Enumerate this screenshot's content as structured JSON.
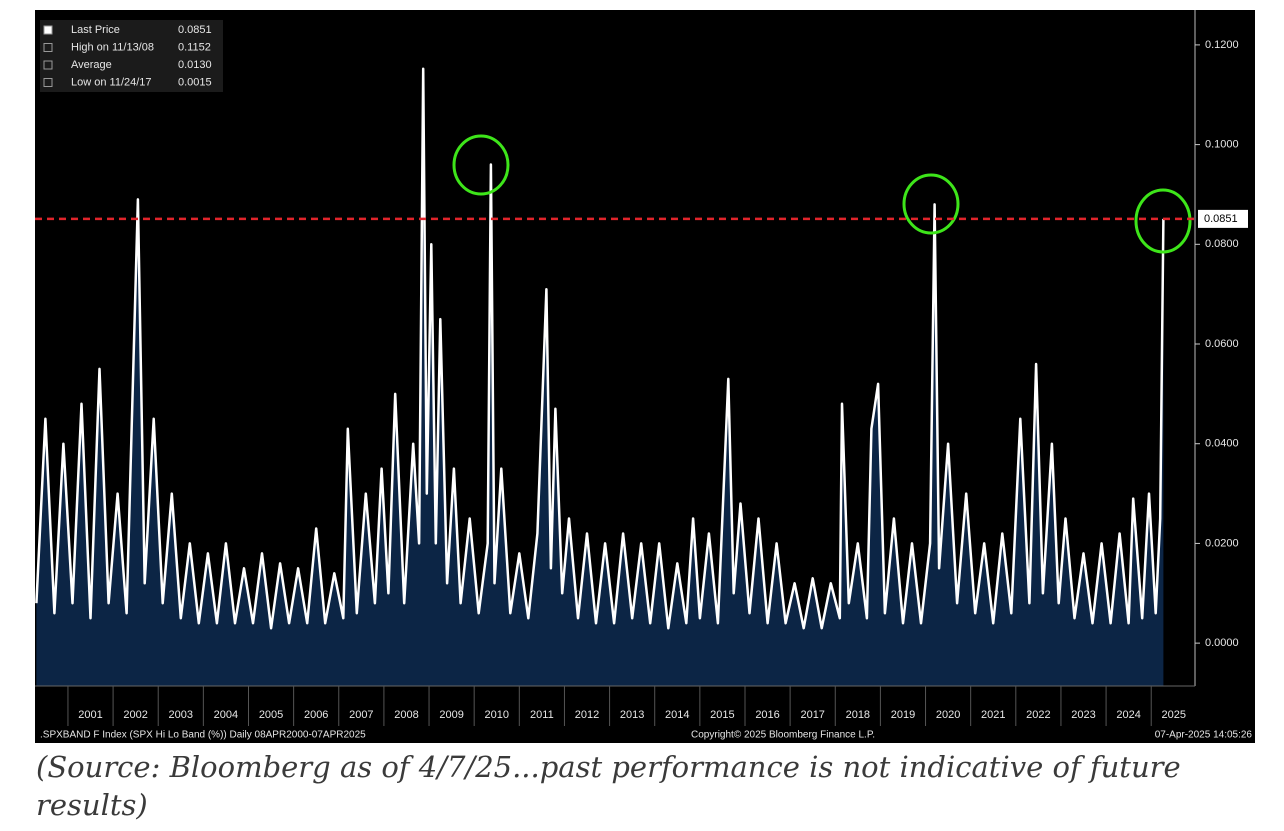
{
  "chart_data": {
    "type": "area",
    "series": [
      {
        "name": "SPX Hi Lo Band (%)",
        "color": "#ffffff",
        "fill": "#0c2545",
        "x": [
          2000.3,
          2000.5,
          2000.7,
          2000.9,
          2001.1,
          2001.3,
          2001.5,
          2001.7,
          2001.9,
          2002.1,
          2002.3,
          2002.55,
          2002.7,
          2002.9,
          2003.1,
          2003.3,
          2003.5,
          2003.7,
          2003.9,
          2004.1,
          2004.3,
          2004.5,
          2004.7,
          2004.9,
          2005.1,
          2005.3,
          2005.5,
          2005.7,
          2005.9,
          2006.1,
          2006.3,
          2006.5,
          2006.7,
          2006.9,
          2007.1,
          2007.2,
          2007.4,
          2007.6,
          2007.8,
          2007.95,
          2008.1,
          2008.25,
          2008.45,
          2008.65,
          2008.78,
          2008.87,
          2008.95,
          2009.05,
          2009.15,
          2009.25,
          2009.4,
          2009.55,
          2009.7,
          2009.9,
          2010.1,
          2010.3,
          2010.37,
          2010.45,
          2010.6,
          2010.8,
          2011.0,
          2011.2,
          2011.4,
          2011.6,
          2011.7,
          2011.8,
          2011.95,
          2012.1,
          2012.3,
          2012.5,
          2012.7,
          2012.9,
          2013.1,
          2013.3,
          2013.5,
          2013.7,
          2013.9,
          2014.1,
          2014.3,
          2014.5,
          2014.7,
          2014.85,
          2015.0,
          2015.2,
          2015.4,
          2015.63,
          2015.75,
          2015.9,
          2016.1,
          2016.3,
          2016.5,
          2016.7,
          2016.9,
          2017.1,
          2017.3,
          2017.5,
          2017.7,
          2017.9,
          2018.1,
          2018.15,
          2018.3,
          2018.5,
          2018.7,
          2018.8,
          2018.95,
          2019.1,
          2019.3,
          2019.5,
          2019.7,
          2019.9,
          2020.1,
          2020.2,
          2020.3,
          2020.5,
          2020.7,
          2020.9,
          2021.1,
          2021.3,
          2021.5,
          2021.7,
          2021.9,
          2022.1,
          2022.3,
          2022.45,
          2022.6,
          2022.8,
          2022.95,
          2023.1,
          2023.3,
          2023.5,
          2023.7,
          2023.9,
          2024.1,
          2024.3,
          2024.5,
          2024.6,
          2024.8,
          2024.95,
          2025.1,
          2025.2,
          2025.27
        ],
        "values": [
          0.008,
          0.045,
          0.006,
          0.04,
          0.008,
          0.048,
          0.005,
          0.055,
          0.008,
          0.03,
          0.006,
          0.089,
          0.012,
          0.045,
          0.008,
          0.03,
          0.005,
          0.02,
          0.004,
          0.018,
          0.004,
          0.02,
          0.004,
          0.015,
          0.004,
          0.018,
          0.003,
          0.016,
          0.004,
          0.015,
          0.004,
          0.023,
          0.004,
          0.014,
          0.005,
          0.043,
          0.006,
          0.03,
          0.008,
          0.035,
          0.01,
          0.05,
          0.008,
          0.04,
          0.02,
          0.1152,
          0.03,
          0.08,
          0.02,
          0.065,
          0.012,
          0.035,
          0.008,
          0.025,
          0.006,
          0.02,
          0.096,
          0.012,
          0.035,
          0.006,
          0.018,
          0.005,
          0.022,
          0.071,
          0.015,
          0.047,
          0.01,
          0.025,
          0.005,
          0.022,
          0.004,
          0.02,
          0.004,
          0.022,
          0.005,
          0.02,
          0.004,
          0.02,
          0.003,
          0.016,
          0.004,
          0.025,
          0.005,
          0.022,
          0.004,
          0.053,
          0.01,
          0.028,
          0.006,
          0.025,
          0.004,
          0.02,
          0.004,
          0.012,
          0.003,
          0.013,
          0.003,
          0.012,
          0.005,
          0.048,
          0.008,
          0.02,
          0.005,
          0.043,
          0.052,
          0.006,
          0.025,
          0.004,
          0.02,
          0.004,
          0.02,
          0.088,
          0.015,
          0.04,
          0.008,
          0.03,
          0.006,
          0.02,
          0.004,
          0.022,
          0.006,
          0.045,
          0.008,
          0.056,
          0.01,
          0.04,
          0.008,
          0.025,
          0.005,
          0.018,
          0.004,
          0.02,
          0.004,
          0.022,
          0.004,
          0.029,
          0.005,
          0.03,
          0.006,
          0.025,
          0.0851
        ]
      }
    ],
    "xlim": [
      2000.27,
      2025.97
    ],
    "xticks": [
      2001,
      2002,
      2003,
      2004,
      2005,
      2006,
      2007,
      2008,
      2009,
      2010,
      2011,
      2012,
      2013,
      2014,
      2015,
      2016,
      2017,
      2018,
      2019,
      2020,
      2021,
      2022,
      2023,
      2024,
      2025
    ],
    "ylim": [
      -0.0086,
      0.127
    ],
    "yticks": [
      {
        "value": 0,
        "label": "0.0000"
      },
      {
        "value": 0.02,
        "label": "0.0200"
      },
      {
        "value": 0.04,
        "label": "0.0400"
      },
      {
        "value": 0.06,
        "label": "0.0600"
      },
      {
        "value": 0.08,
        "label": "0.0800"
      },
      {
        "value": 0.1,
        "label": "0.1000"
      },
      {
        "value": 0.12,
        "label": "0.1200"
      }
    ],
    "reference_line_color": "#e0242b",
    "legend": [
      {
        "label": "Last Price",
        "value": "0.0851"
      },
      {
        "label": "High on 11/13/08",
        "value": "0.1152"
      },
      {
        "label": "Average",
        "value": "0.0130"
      },
      {
        "label": "Low on 11/24/17",
        "value": "0.0015"
      }
    ],
    "footer_left": ".SPXBAND F Index (SPX Hi Lo Band (%))  Daily 08APR2000-07APR2025",
    "footer_center": "Copyright© 2025 Bloomberg Finance L.P.",
    "footer_right": "07-Apr-2025 14:05:26"
  },
  "caption": "(Source: Bloomberg as of 4/7/25...past performance is not indicative of future results)"
}
